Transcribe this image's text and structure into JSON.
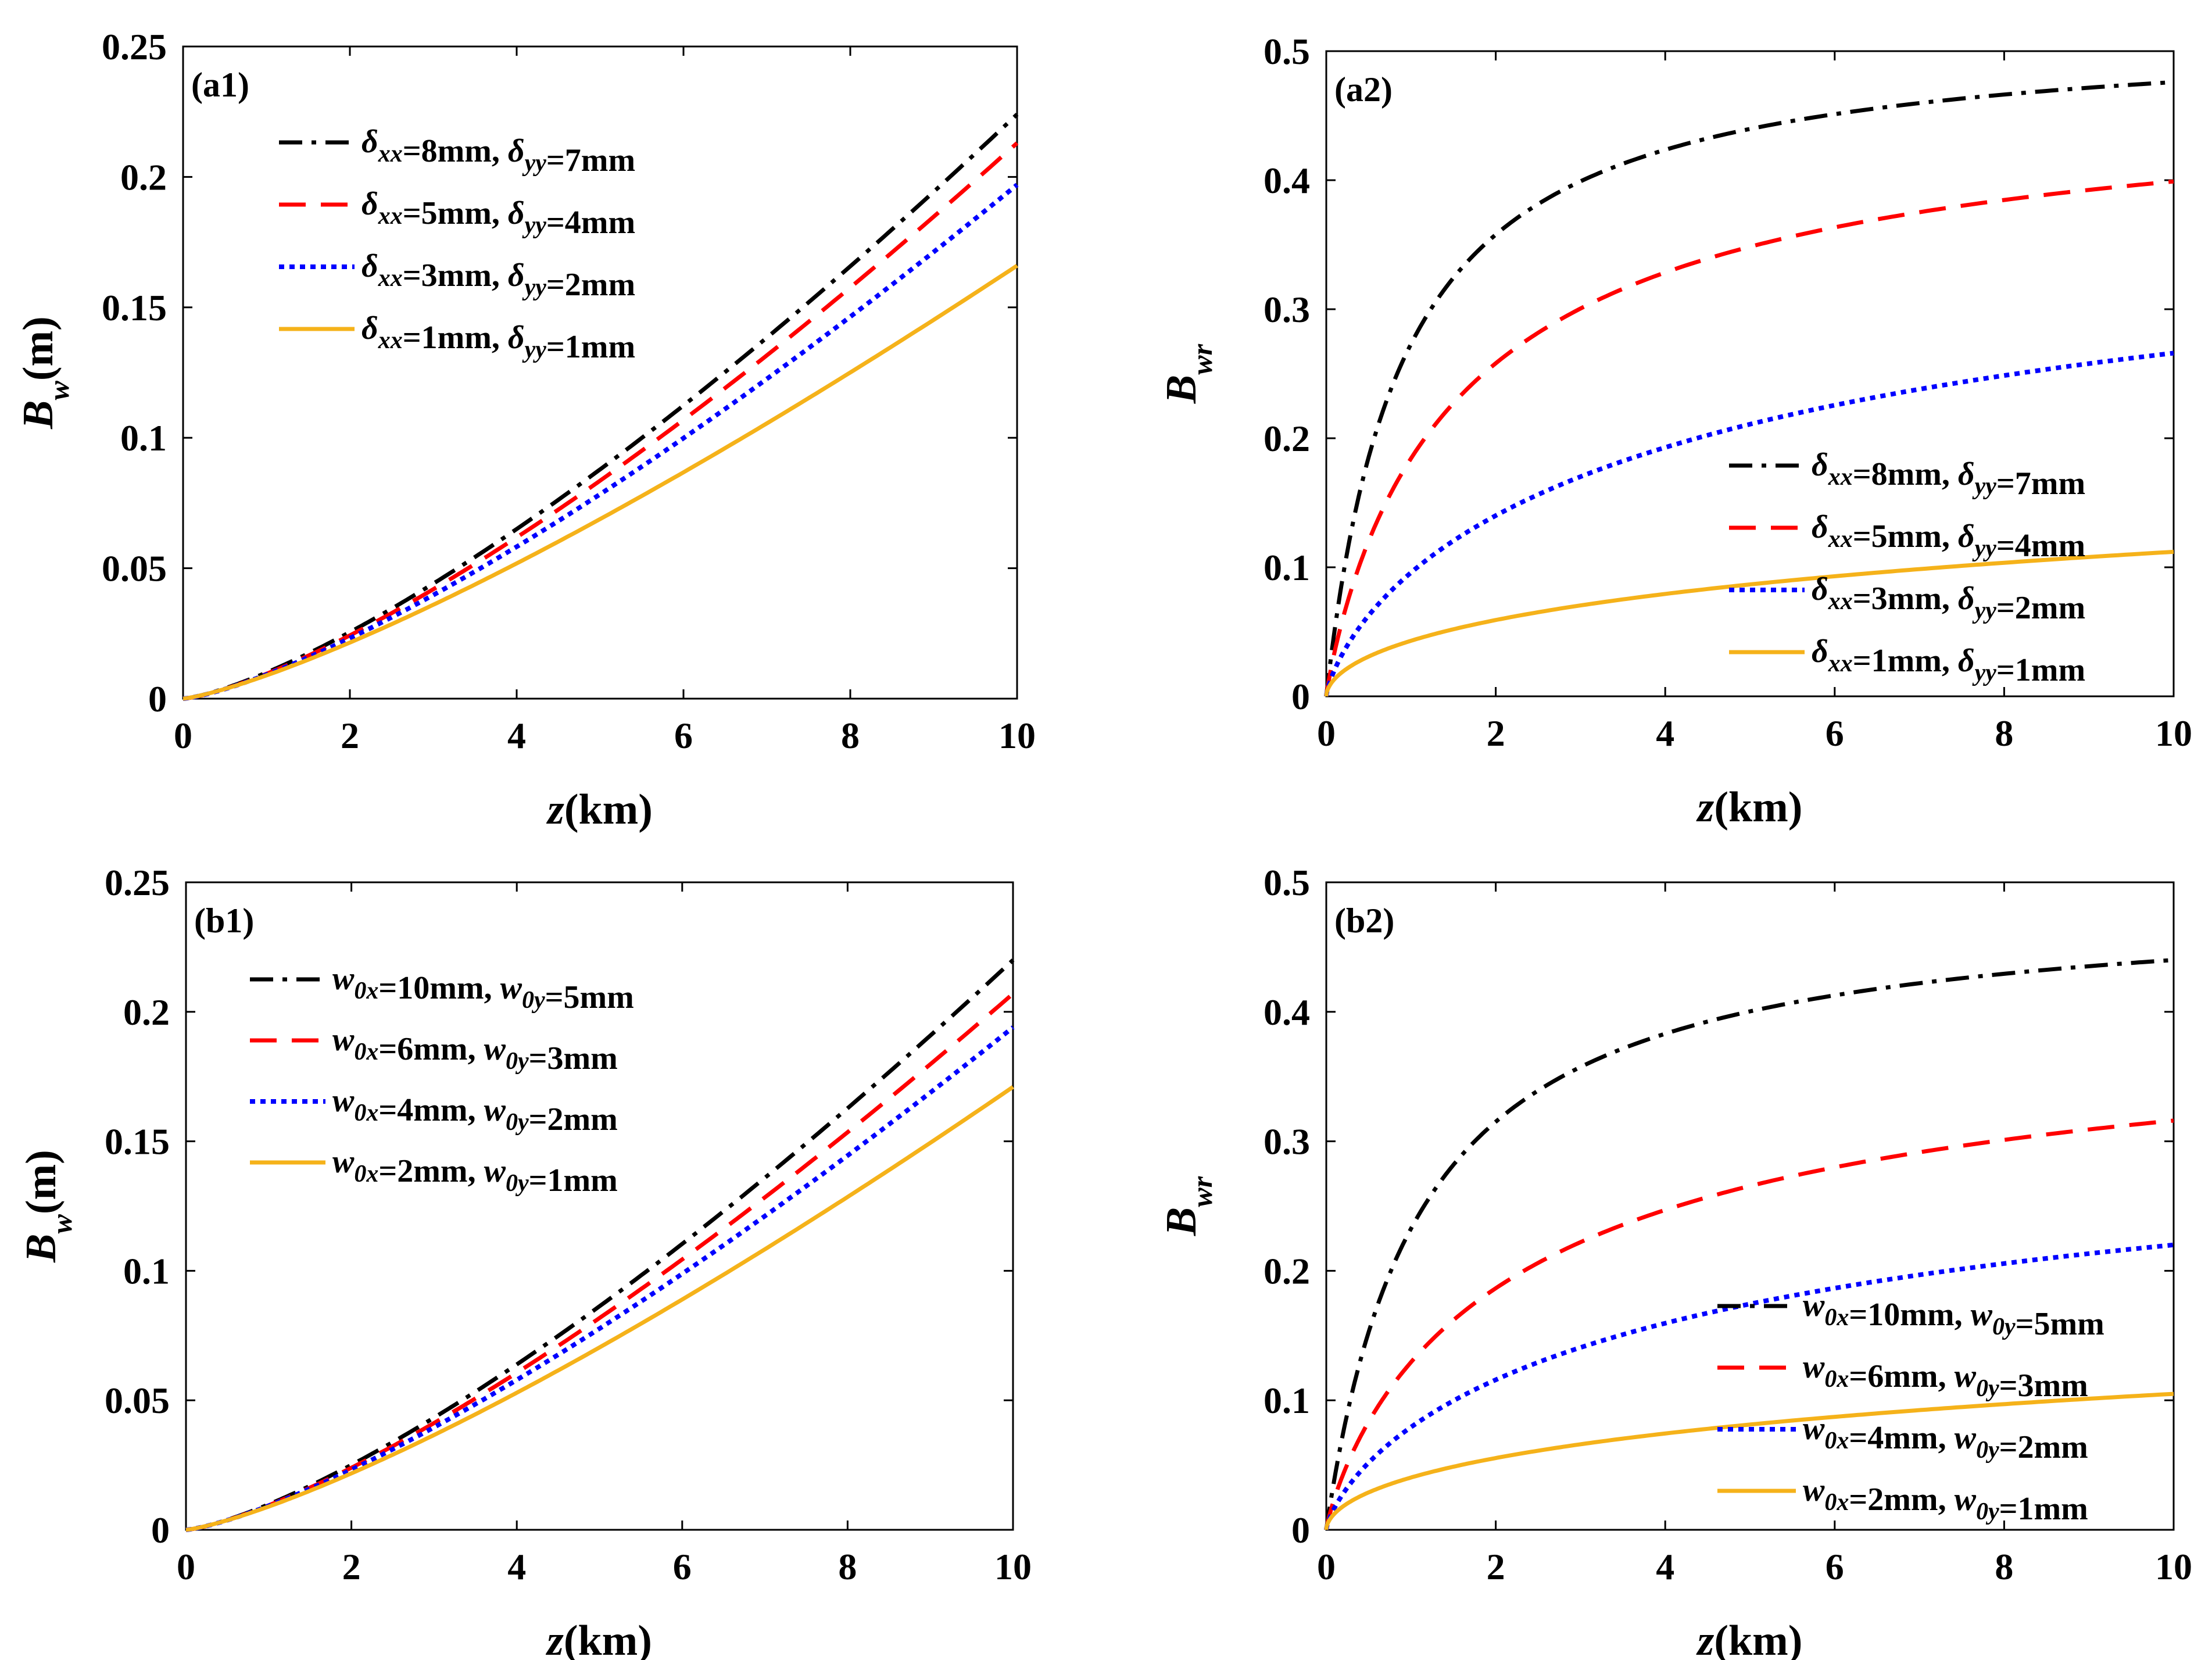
{
  "colors": {
    "black": "#000000",
    "red": "#ff0000",
    "blue": "#0000ff",
    "orange": "#f5b21a",
    "frame": "#000000",
    "background": "#ffffff"
  },
  "chart_data": [
    {
      "id": "a1",
      "type": "line",
      "panel_label": "(a1)",
      "xlabel": {
        "main": "z",
        "unit": "(km)"
      },
      "ylabel": {
        "main": "B",
        "sub": "w",
        "unit": "(m)"
      },
      "xlim": [
        0,
        10
      ],
      "ylim": [
        0,
        0.25
      ],
      "xticks": [
        "0",
        "2",
        "4",
        "6",
        "8",
        "10"
      ],
      "yticks": [
        "0",
        "0.05",
        "0.1",
        "0.15",
        "0.2",
        "0.25"
      ],
      "legend_position": "top-left",
      "model": "power",
      "series": [
        {
          "name": "δxx=8mm, δyy=7mm",
          "color_key": "black",
          "style": "dashdot",
          "end_value": 0.224,
          "exponent": 1.35,
          "legend": [
            {
              "t": "δ",
              "sub": "xx"
            },
            {
              "t": "=8mm, "
            },
            {
              "t": "δ",
              "sub": "yy"
            },
            {
              "t": "=7mm"
            }
          ]
        },
        {
          "name": "δxx=5mm, δyy=4mm",
          "color_key": "red",
          "style": "dashed",
          "end_value": 0.213,
          "exponent": 1.35,
          "legend": [
            {
              "t": "δ",
              "sub": "xx"
            },
            {
              "t": "=5mm, "
            },
            {
              "t": "δ",
              "sub": "yy"
            },
            {
              "t": "=4mm"
            }
          ]
        },
        {
          "name": "δxx=3mm, δyy=2mm",
          "color_key": "blue",
          "style": "dotted",
          "end_value": 0.197,
          "exponent": 1.33,
          "legend": [
            {
              "t": "δ",
              "sub": "xx"
            },
            {
              "t": "=3mm, "
            },
            {
              "t": "δ",
              "sub": "yy"
            },
            {
              "t": "=2mm"
            }
          ]
        },
        {
          "name": "δxx=1mm, δyy=1mm",
          "color_key": "orange",
          "style": "solid",
          "end_value": 0.166,
          "exponent": 1.27,
          "legend": [
            {
              "t": "δ",
              "sub": "xx"
            },
            {
              "t": "=1mm, "
            },
            {
              "t": "δ",
              "sub": "yy"
            },
            {
              "t": "=1mm"
            }
          ]
        }
      ]
    },
    {
      "id": "a2",
      "type": "line",
      "panel_label": "(a2)",
      "xlabel": {
        "main": "z",
        "unit": "(km)"
      },
      "ylabel": {
        "main": "B",
        "sub": "wr",
        "unit": ""
      },
      "xlim": [
        0,
        10
      ],
      "ylim": [
        0,
        0.5
      ],
      "xticks": [
        "0",
        "2",
        "4",
        "6",
        "8",
        "10"
      ],
      "yticks": [
        "0",
        "0.1",
        "0.2",
        "0.3",
        "0.4",
        "0.5"
      ],
      "legend_position": "bottom-right",
      "model": "saturating",
      "series": [
        {
          "name": "δxx=8mm, δyy=7mm",
          "color_key": "black",
          "style": "dashdot",
          "end_value": 0.476,
          "shape": 0.9,
          "exponent": 1.0,
          "legend": [
            {
              "t": "δ",
              "sub": "xx"
            },
            {
              "t": "=8mm, "
            },
            {
              "t": "δ",
              "sub": "yy"
            },
            {
              "t": "=7mm"
            }
          ]
        },
        {
          "name": "δxx=5mm, δyy=4mm",
          "color_key": "red",
          "style": "dashed",
          "end_value": 0.399,
          "shape": 1.6,
          "exponent": 0.9,
          "legend": [
            {
              "t": "δ",
              "sub": "xx"
            },
            {
              "t": "=5mm, "
            },
            {
              "t": "δ",
              "sub": "yy"
            },
            {
              "t": "=4mm"
            }
          ]
        },
        {
          "name": "δxx=3mm, δyy=2mm",
          "color_key": "blue",
          "style": "dotted",
          "end_value": 0.266,
          "shape": 3.5,
          "exponent": 0.75,
          "legend": [
            {
              "t": "δ",
              "sub": "xx"
            },
            {
              "t": "=3mm, "
            },
            {
              "t": "δ",
              "sub": "yy"
            },
            {
              "t": "=2mm"
            }
          ]
        },
        {
          "name": "δxx=1mm, δyy=1mm",
          "color_key": "orange",
          "style": "solid",
          "end_value": 0.112,
          "shape": 6.0,
          "exponent": 0.55,
          "legend": [
            {
              "t": "δ",
              "sub": "xx"
            },
            {
              "t": "=1mm, "
            },
            {
              "t": "δ",
              "sub": "yy"
            },
            {
              "t": "=1mm"
            }
          ]
        }
      ]
    },
    {
      "id": "b1",
      "type": "line",
      "panel_label": "(b1)",
      "xlabel": {
        "main": "z",
        "unit": "(km)"
      },
      "ylabel": {
        "main": "B",
        "sub": "w",
        "unit": "(m)"
      },
      "xlim": [
        0,
        10
      ],
      "ylim": [
        0,
        0.25
      ],
      "xticks": [
        "0",
        "2",
        "4",
        "6",
        "8",
        "10"
      ],
      "yticks": [
        "0",
        "0.05",
        "0.1",
        "0.15",
        "0.2",
        "0.25"
      ],
      "legend_position": "top-left",
      "model": "power",
      "series": [
        {
          "name": "w0x=10mm, w0y=5mm",
          "color_key": "black",
          "style": "dashdot",
          "end_value": 0.22,
          "exponent": 1.35,
          "legend": [
            {
              "t": "w",
              "sub": "0x"
            },
            {
              "t": "=10mm, "
            },
            {
              "t": "w",
              "sub": "0y"
            },
            {
              "t": "=5mm"
            }
          ]
        },
        {
          "name": "w0x=6mm, w0y=3mm",
          "color_key": "red",
          "style": "dashed",
          "end_value": 0.207,
          "exponent": 1.34,
          "legend": [
            {
              "t": "w",
              "sub": "0x"
            },
            {
              "t": "=6mm, "
            },
            {
              "t": "w",
              "sub": "0y"
            },
            {
              "t": "=3mm"
            }
          ]
        },
        {
          "name": "w0x=4mm, w0y=2mm",
          "color_key": "blue",
          "style": "dotted",
          "end_value": 0.194,
          "exponent": 1.32,
          "legend": [
            {
              "t": "w",
              "sub": "0x"
            },
            {
              "t": "=4mm, "
            },
            {
              "t": "w",
              "sub": "0y"
            },
            {
              "t": "=2mm"
            }
          ]
        },
        {
          "name": "w0x=2mm, w0y=1mm",
          "color_key": "orange",
          "style": "solid",
          "end_value": 0.171,
          "exponent": 1.28,
          "legend": [
            {
              "t": "w",
              "sub": "0x"
            },
            {
              "t": "=2mm, "
            },
            {
              "t": "w",
              "sub": "0y"
            },
            {
              "t": "=1mm"
            }
          ]
        }
      ]
    },
    {
      "id": "b2",
      "type": "line",
      "panel_label": "(b2)",
      "xlabel": {
        "main": "z",
        "unit": "(km)"
      },
      "ylabel": {
        "main": "B",
        "sub": "wr",
        "unit": ""
      },
      "xlim": [
        0,
        10
      ],
      "ylim": [
        0,
        0.5
      ],
      "xticks": [
        "0",
        "2",
        "4",
        "6",
        "8",
        "10"
      ],
      "yticks": [
        "0",
        "0.1",
        "0.2",
        "0.3",
        "0.4",
        "0.5"
      ],
      "legend_position": "bottom-right",
      "model": "saturating",
      "series": [
        {
          "name": "w0x=10mm, w0y=5mm",
          "color_key": "black",
          "style": "dashdot",
          "end_value": 0.44,
          "shape": 1.1,
          "exponent": 1.0,
          "legend": [
            {
              "t": "w",
              "sub": "0x"
            },
            {
              "t": "=10mm, "
            },
            {
              "t": "w",
              "sub": "0y"
            },
            {
              "t": "=5mm"
            }
          ]
        },
        {
          "name": "w0x=6mm, w0y=3mm",
          "color_key": "red",
          "style": "dashed",
          "end_value": 0.316,
          "shape": 2.2,
          "exponent": 0.85,
          "legend": [
            {
              "t": "w",
              "sub": "0x"
            },
            {
              "t": "=6mm, "
            },
            {
              "t": "w",
              "sub": "0y"
            },
            {
              "t": "=3mm"
            }
          ]
        },
        {
          "name": "w0x=4mm, w0y=2mm",
          "color_key": "blue",
          "style": "dotted",
          "end_value": 0.22,
          "shape": 3.5,
          "exponent": 0.75,
          "legend": [
            {
              "t": "w",
              "sub": "0x"
            },
            {
              "t": "=4mm, "
            },
            {
              "t": "w",
              "sub": "0y"
            },
            {
              "t": "=2mm"
            }
          ]
        },
        {
          "name": "w0x=2mm, w0y=1mm",
          "color_key": "orange",
          "style": "solid",
          "end_value": 0.105,
          "shape": 6.0,
          "exponent": 0.55,
          "legend": [
            {
              "t": "w",
              "sub": "0x"
            },
            {
              "t": "=2mm, "
            },
            {
              "t": "w",
              "sub": "0y"
            },
            {
              "t": "=1mm"
            }
          ]
        }
      ]
    }
  ]
}
